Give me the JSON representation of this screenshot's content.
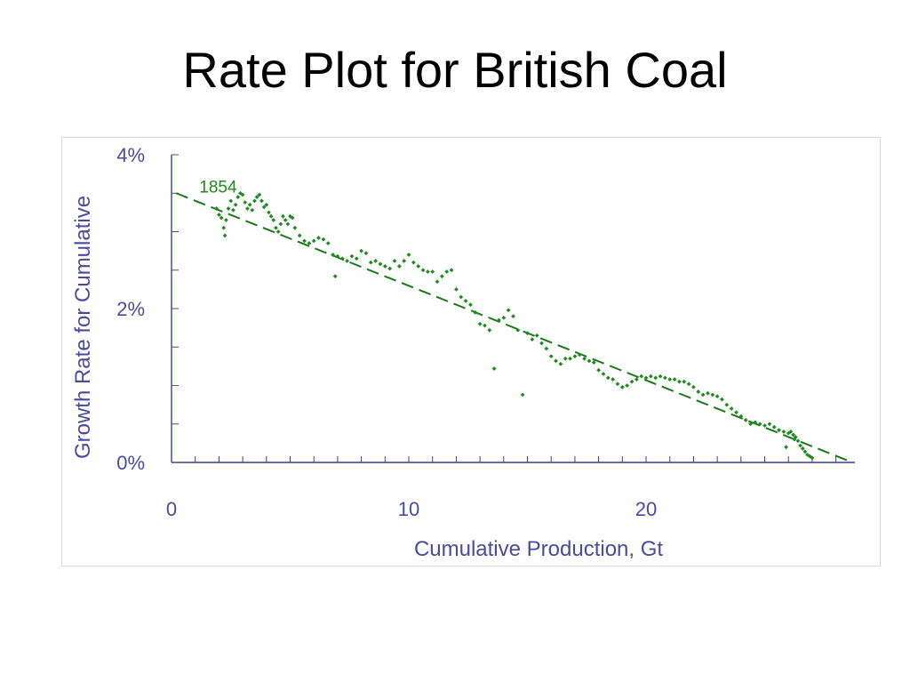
{
  "slide": {
    "title": "Rate Plot for British Coal"
  },
  "colors": {
    "axis_text": "#4a4aa0",
    "axis_line": "#3f3f8f",
    "series": "#1f8a1f",
    "trend": "#1a7a1a"
  },
  "chart_data": {
    "type": "scatter",
    "title": "Rate Plot for British Coal",
    "xlabel": "Cumulative Production, Gt",
    "ylabel": "Growth Rate for Cumulative",
    "xlim": [
      0,
      28.8
    ],
    "ylim": [
      0,
      4
    ],
    "x_ticks": [
      0,
      10,
      20
    ],
    "x_tick_labels": [
      "0",
      "10",
      "20"
    ],
    "y_ticks": [
      0,
      2,
      4
    ],
    "y_tick_labels": [
      "0%",
      "2%",
      "4%"
    ],
    "y_unit": "%",
    "grid": false,
    "annotations": [
      {
        "text": "1854",
        "x": 2.0,
        "y": 3.6
      }
    ],
    "series": [
      {
        "kind": "points",
        "color": "#1f8a1f",
        "points": [
          [
            1.9,
            3.3
          ],
          [
            2.0,
            3.22
          ],
          [
            2.1,
            3.18
          ],
          [
            2.2,
            3.05
          ],
          [
            2.25,
            2.95
          ],
          [
            2.3,
            3.15
          ],
          [
            2.4,
            3.3
          ],
          [
            2.5,
            3.4
          ],
          [
            2.6,
            3.28
          ],
          [
            2.7,
            3.35
          ],
          [
            2.8,
            3.45
          ],
          [
            2.9,
            3.5
          ],
          [
            3.0,
            3.48
          ],
          [
            3.1,
            3.38
          ],
          [
            3.2,
            3.3
          ],
          [
            3.3,
            3.35
          ],
          [
            3.4,
            3.28
          ],
          [
            3.5,
            3.4
          ],
          [
            3.6,
            3.45
          ],
          [
            3.7,
            3.48
          ],
          [
            3.8,
            3.4
          ],
          [
            3.9,
            3.32
          ],
          [
            4.0,
            3.35
          ],
          [
            4.1,
            3.25
          ],
          [
            4.2,
            3.2
          ],
          [
            4.3,
            3.15
          ],
          [
            4.4,
            3.05
          ],
          [
            4.5,
            3.0
          ],
          [
            4.6,
            3.1
          ],
          [
            4.7,
            3.2
          ],
          [
            4.8,
            3.15
          ],
          [
            4.9,
            3.1
          ],
          [
            5.0,
            3.2
          ],
          [
            5.1,
            3.18
          ],
          [
            5.2,
            3.05
          ],
          [
            5.4,
            2.95
          ],
          [
            5.6,
            2.88
          ],
          [
            5.8,
            2.85
          ],
          [
            6.0,
            2.88
          ],
          [
            6.2,
            2.92
          ],
          [
            6.4,
            2.9
          ],
          [
            6.6,
            2.85
          ],
          [
            6.8,
            2.7
          ],
          [
            6.9,
            2.42
          ],
          [
            7.0,
            2.68
          ],
          [
            7.2,
            2.65
          ],
          [
            7.4,
            2.62
          ],
          [
            7.6,
            2.68
          ],
          [
            7.8,
            2.65
          ],
          [
            8.0,
            2.75
          ],
          [
            8.2,
            2.72
          ],
          [
            8.4,
            2.6
          ],
          [
            8.6,
            2.62
          ],
          [
            8.8,
            2.58
          ],
          [
            9.0,
            2.55
          ],
          [
            9.2,
            2.52
          ],
          [
            9.4,
            2.62
          ],
          [
            9.6,
            2.55
          ],
          [
            9.8,
            2.62
          ],
          [
            10.0,
            2.7
          ],
          [
            10.2,
            2.6
          ],
          [
            10.4,
            2.55
          ],
          [
            10.6,
            2.5
          ],
          [
            10.8,
            2.48
          ],
          [
            11.0,
            2.48
          ],
          [
            11.2,
            2.35
          ],
          [
            11.4,
            2.42
          ],
          [
            11.6,
            2.48
          ],
          [
            11.8,
            2.5
          ],
          [
            12.0,
            2.25
          ],
          [
            12.2,
            2.15
          ],
          [
            12.4,
            2.1
          ],
          [
            12.6,
            2.05
          ],
          [
            12.8,
            1.95
          ],
          [
            13.0,
            1.8
          ],
          [
            13.2,
            1.78
          ],
          [
            13.4,
            1.72
          ],
          [
            13.6,
            1.22
          ],
          [
            13.8,
            1.85
          ],
          [
            14.0,
            1.88
          ],
          [
            14.2,
            1.98
          ],
          [
            14.4,
            1.9
          ],
          [
            14.6,
            1.72
          ],
          [
            14.8,
            0.88
          ],
          [
            15.0,
            1.68
          ],
          [
            15.2,
            1.6
          ],
          [
            15.4,
            1.65
          ],
          [
            15.6,
            1.55
          ],
          [
            15.8,
            1.48
          ],
          [
            16.0,
            1.38
          ],
          [
            16.2,
            1.32
          ],
          [
            16.4,
            1.28
          ],
          [
            16.6,
            1.35
          ],
          [
            16.8,
            1.35
          ],
          [
            17.0,
            1.38
          ],
          [
            17.2,
            1.4
          ],
          [
            17.4,
            1.35
          ],
          [
            17.6,
            1.32
          ],
          [
            17.8,
            1.3
          ],
          [
            18.0,
            1.2
          ],
          [
            18.2,
            1.15
          ],
          [
            18.4,
            1.1
          ],
          [
            18.6,
            1.08
          ],
          [
            18.8,
            1.02
          ],
          [
            19.0,
            0.98
          ],
          [
            19.2,
            1.0
          ],
          [
            19.4,
            1.05
          ],
          [
            19.6,
            1.08
          ],
          [
            19.8,
            1.12
          ],
          [
            20.0,
            1.1
          ],
          [
            20.2,
            1.12
          ],
          [
            20.4,
            1.1
          ],
          [
            20.6,
            1.12
          ],
          [
            20.8,
            1.1
          ],
          [
            21.0,
            1.08
          ],
          [
            21.2,
            1.08
          ],
          [
            21.4,
            1.05
          ],
          [
            21.6,
            1.05
          ],
          [
            21.8,
            1.02
          ],
          [
            22.0,
            0.98
          ],
          [
            22.2,
            0.92
          ],
          [
            22.4,
            0.88
          ],
          [
            22.6,
            0.9
          ],
          [
            22.8,
            0.88
          ],
          [
            23.0,
            0.86
          ],
          [
            23.2,
            0.82
          ],
          [
            23.4,
            0.75
          ],
          [
            23.6,
            0.7
          ],
          [
            23.8,
            0.65
          ],
          [
            24.0,
            0.6
          ],
          [
            24.2,
            0.55
          ],
          [
            24.4,
            0.5
          ],
          [
            24.6,
            0.52
          ],
          [
            24.8,
            0.5
          ],
          [
            25.0,
            0.48
          ],
          [
            25.2,
            0.5
          ],
          [
            25.4,
            0.46
          ],
          [
            25.6,
            0.42
          ],
          [
            25.8,
            0.4
          ],
          [
            26.0,
            0.38
          ],
          [
            26.2,
            0.36
          ],
          [
            26.3,
            0.33
          ],
          [
            26.4,
            0.28
          ],
          [
            26.5,
            0.22
          ],
          [
            26.6,
            0.18
          ],
          [
            26.7,
            0.14
          ],
          [
            26.8,
            0.1
          ],
          [
            26.9,
            0.08
          ],
          [
            27.0,
            0.06
          ],
          [
            25.9,
            0.2
          ],
          [
            26.1,
            0.4
          ],
          [
            26.25,
            0.3
          ]
        ]
      },
      {
        "kind": "trend-line",
        "style": "dashed",
        "color": "#1a7a1a",
        "points": [
          [
            0.2,
            3.5
          ],
          [
            28.7,
            0.0
          ]
        ]
      }
    ]
  }
}
